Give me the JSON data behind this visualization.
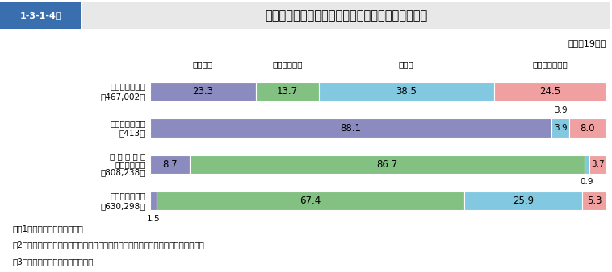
{
  "title_box_label": "1-3-1-4図",
  "title": "交通事件の検察庁終局処理人員の処理区分別構成比",
  "subtitle": "（平成19年）",
  "col_labels": [
    "公判請求",
    "略式命令請求",
    "不起訴",
    "家庭裁判所送致"
  ],
  "row_labels_line1": [
    "一　般　事　件",
    "危険運転致死傷",
    "自 動 車 運 転",
    "道　交　違　反"
  ],
  "row_labels_line2": [
    "（467,002）",
    "（413）",
    "過失致死傷等",
    "（630,298）"
  ],
  "row_labels_line3": [
    "",
    "",
    "（808,238）",
    ""
  ],
  "data": [
    [
      23.3,
      13.7,
      38.5,
      24.5
    ],
    [
      88.1,
      0.0,
      3.9,
      8.0
    ],
    [
      8.7,
      86.7,
      0.9,
      3.7
    ],
    [
      1.5,
      67.4,
      25.9,
      5.3
    ]
  ],
  "colors": [
    "#8b8bbf",
    "#82c182",
    "#82c8e0",
    "#f0a0a0"
  ],
  "note_lines": [
    "注　1　検察統計年報による。",
    "　2「一般事件」とは，交通事件を除く刑法犯及び特別法犯に係る被疑事件をいう。",
    "　3　（　）内は，実人員である。"
  ],
  "figsize": [
    7.58,
    3.38
  ],
  "dpi": 100
}
